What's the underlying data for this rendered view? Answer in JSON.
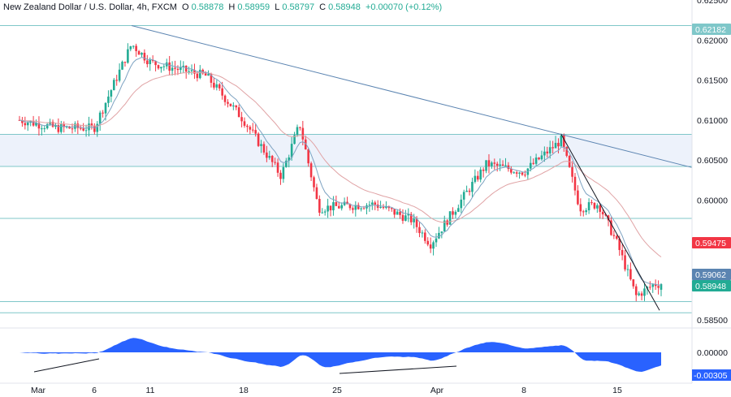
{
  "header": {
    "symbol": "New Zealand Dollar / U.S. Dollar, 4h, FXCM",
    "ohlc": [
      {
        "label": "O",
        "value": "0.58878"
      },
      {
        "label": "H",
        "value": "0.58959"
      },
      {
        "label": "L",
        "value": "0.58797"
      },
      {
        "label": "C",
        "value": "0.58948"
      }
    ],
    "change": "+0.00070 (+0.12%)"
  },
  "colors": {
    "up": "#22ab94",
    "down": "#f23645",
    "fast_ma": "#7ea3c2",
    "slow_ma": "#e0a3a5",
    "trendline": "#5b84b1",
    "hline": "#7fc7c9",
    "oscillator": "#2962ff",
    "zone_fill": "#edf2fb"
  },
  "chart_data": [
    {
      "type": "candlestick",
      "title": "New Zealand Dollar / U.S. Dollar, 4h, FXCM",
      "x_tick_labels": [
        "Mar",
        "6",
        "11",
        "18",
        "25",
        "Apr",
        "8",
        "15"
      ],
      "y_ticks": [
        "0.62500",
        "0.62000",
        "0.61500",
        "0.61000",
        "0.60500",
        "0.60000",
        "0.59500",
        "0.59000",
        "0.58500"
      ],
      "ylim": [
        0.584,
        0.625
      ],
      "price_tags": [
        {
          "value": "0.62182",
          "style": "hline"
        },
        {
          "value": "0.59475",
          "style": "slow_ma"
        },
        {
          "value": "0.59062",
          "style": "fast_ma"
        },
        {
          "value": "0.58948",
          "style": "last"
        }
      ],
      "last_ohlc": {
        "open": 0.58878,
        "high": 0.58959,
        "low": 0.58797,
        "close": 0.58948
      },
      "key_closes": [
        {
          "date": "Feb 29",
          "close": 0.61
        },
        {
          "date": "Mar 4",
          "close": 0.609
        },
        {
          "date": "Mar 6",
          "close": 0.609
        },
        {
          "date": "Mar 8",
          "close": 0.6195
        },
        {
          "date": "Mar 11",
          "close": 0.6172
        },
        {
          "date": "Mar 14",
          "close": 0.6155
        },
        {
          "date": "Mar 18",
          "close": 0.61
        },
        {
          "date": "Mar 20",
          "close": 0.603
        },
        {
          "date": "Mar 21",
          "close": 0.6095
        },
        {
          "date": "Mar 22",
          "close": 0.599
        },
        {
          "date": "Mar 27",
          "close": 0.5995
        },
        {
          "date": "Mar 29",
          "close": 0.5975
        },
        {
          "date": "Apr 1",
          "close": 0.5945
        },
        {
          "date": "Apr 4",
          "close": 0.6045
        },
        {
          "date": "Apr 8",
          "close": 0.6035
        },
        {
          "date": "Apr 10",
          "close": 0.6075
        },
        {
          "date": "Apr 11",
          "close": 0.599
        },
        {
          "date": "Apr 12",
          "close": 0.5995
        },
        {
          "date": "Apr 15",
          "close": 0.5945
        },
        {
          "date": "Apr 16",
          "close": 0.588
        },
        {
          "date": "Apr 17",
          "close": 0.5895
        }
      ],
      "horizontal_lines": [
        0.6218,
        0.6082,
        0.6042,
        0.5977,
        0.5873,
        0.5859
      ],
      "zone": [
        0.6042,
        0.6082
      ],
      "trendlines": [
        {
          "from": {
            "date": "Mar 8",
            "price": 0.6218
          },
          "to": {
            "date": "Apr 10",
            "price": 0.6082
          }
        },
        {
          "from": {
            "date": "Apr 10",
            "price": 0.6082
          },
          "to": {
            "date": "Apr 17",
            "price": 0.5873
          }
        }
      ]
    },
    {
      "type": "area",
      "y_ticks": [
        "0.00000",
        "-0.00305"
      ],
      "last_value": "-0.00305"
    }
  ]
}
